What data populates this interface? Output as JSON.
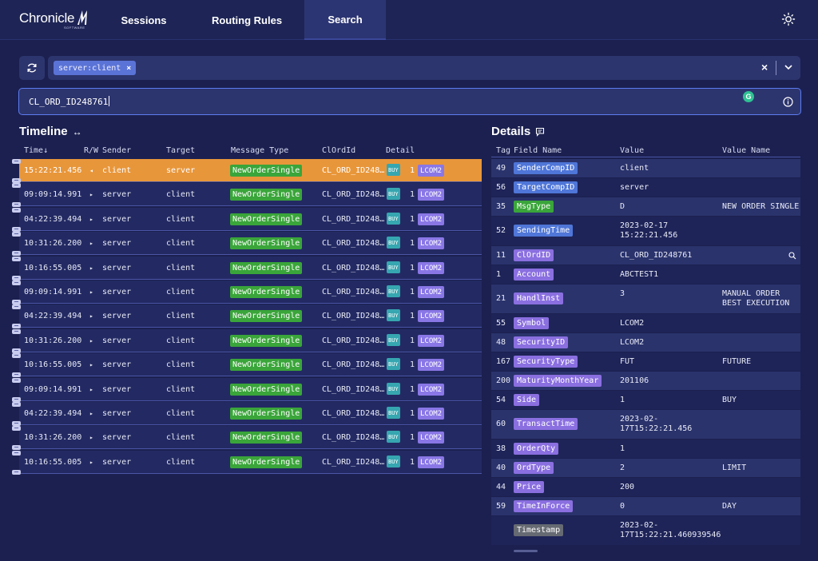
{
  "header": {
    "logo_text": "Chronicle",
    "logo_sub": "SOFTWARE",
    "tabs": [
      "Sessions",
      "Routing Rules",
      "Search"
    ],
    "active_tab": "Search",
    "theme_icon": "sun-icon"
  },
  "filter": {
    "chip": "server:client",
    "chip_remove": "×",
    "clear": "×"
  },
  "search": {
    "value": "CL_ORD_ID248761",
    "grammar_badge": "G"
  },
  "timeline": {
    "title": "Timeline",
    "expand": "↔",
    "columns": [
      "Time↓",
      "R/W",
      "Sender",
      "Target",
      "Message Type",
      "ClOrdId",
      "Detail"
    ],
    "rows": [
      {
        "time": "15:22:21.456",
        "rw": "◂",
        "sender": "client",
        "target": "server",
        "msg_type": "NewOrderSingle",
        "clordid": "CL_ORD_ID248…",
        "side": "BUY",
        "sup": "1",
        "symbol": "LCOM2",
        "selected": true
      },
      {
        "time": "09:09:14.991",
        "rw": "▸",
        "sender": "server",
        "target": "client",
        "msg_type": "NewOrderSingle",
        "clordid": "CL_ORD_ID248…",
        "side": "BUY",
        "sup": "1",
        "symbol": "LCOM2"
      },
      {
        "time": "04:22:39.494",
        "rw": "▸",
        "sender": "server",
        "target": "client",
        "msg_type": "NewOrderSingle",
        "clordid": "CL_ORD_ID248…",
        "side": "BUY",
        "sup": "1",
        "symbol": "LCOM2"
      },
      {
        "time": "10:31:26.200",
        "rw": "▸",
        "sender": "server",
        "target": "client",
        "msg_type": "NewOrderSingle",
        "clordid": "CL_ORD_ID248…",
        "side": "BUY",
        "sup": "1",
        "symbol": "LCOM2"
      },
      {
        "time": "10:16:55.005",
        "rw": "▸",
        "sender": "server",
        "target": "client",
        "msg_type": "NewOrderSingle",
        "clordid": "CL_ORD_ID248…",
        "side": "BUY",
        "sup": "1",
        "symbol": "LCOM2"
      },
      {
        "time": "09:09:14.991",
        "rw": "▸",
        "sender": "server",
        "target": "client",
        "msg_type": "NewOrderSingle",
        "clordid": "CL_ORD_ID248…",
        "side": "BUY",
        "sup": "1",
        "symbol": "LCOM2"
      },
      {
        "time": "04:22:39.494",
        "rw": "▸",
        "sender": "server",
        "target": "client",
        "msg_type": "NewOrderSingle",
        "clordid": "CL_ORD_ID248…",
        "side": "BUY",
        "sup": "1",
        "symbol": "LCOM2"
      },
      {
        "time": "10:31:26.200",
        "rw": "▸",
        "sender": "server",
        "target": "client",
        "msg_type": "NewOrderSingle",
        "clordid": "CL_ORD_ID248…",
        "side": "BUY",
        "sup": "1",
        "symbol": "LCOM2"
      },
      {
        "time": "10:16:55.005",
        "rw": "▸",
        "sender": "server",
        "target": "client",
        "msg_type": "NewOrderSingle",
        "clordid": "CL_ORD_ID248…",
        "side": "BUY",
        "sup": "1",
        "symbol": "LCOM2"
      },
      {
        "time": "09:09:14.991",
        "rw": "▸",
        "sender": "server",
        "target": "client",
        "msg_type": "NewOrderSingle",
        "clordid": "CL_ORD_ID248…",
        "side": "BUY",
        "sup": "1",
        "symbol": "LCOM2"
      },
      {
        "time": "04:22:39.494",
        "rw": "▸",
        "sender": "server",
        "target": "client",
        "msg_type": "NewOrderSingle",
        "clordid": "CL_ORD_ID248…",
        "side": "BUY",
        "sup": "1",
        "symbol": "LCOM2"
      },
      {
        "time": "10:31:26.200",
        "rw": "▸",
        "sender": "server",
        "target": "client",
        "msg_type": "NewOrderSingle",
        "clordid": "CL_ORD_ID248…",
        "side": "BUY",
        "sup": "1",
        "symbol": "LCOM2"
      },
      {
        "time": "10:16:55.005",
        "rw": "▸",
        "sender": "server",
        "target": "client",
        "msg_type": "NewOrderSingle",
        "clordid": "CL_ORD_ID248…",
        "side": "BUY",
        "sup": "1",
        "symbol": "LCOM2"
      }
    ]
  },
  "details": {
    "title": "Details",
    "columns": [
      "Tag",
      "Field Name",
      "Value",
      "Value Name"
    ],
    "rows": [
      {
        "tag": "49",
        "field": "SenderCompID",
        "color": "blue",
        "value": "client",
        "value_name": ""
      },
      {
        "tag": "56",
        "field": "TargetCompID",
        "color": "blue",
        "value": "server",
        "value_name": ""
      },
      {
        "tag": "35",
        "field": "MsgType",
        "color": "green",
        "value": "D",
        "value_name": "NEW ORDER SINGLE"
      },
      {
        "tag": "52",
        "field": "SendingTime",
        "color": "blue",
        "value": "2023-02-17\n15:22:21.456",
        "value_name": ""
      },
      {
        "tag": "11",
        "field": "ClOrdID",
        "color": "purple",
        "value": "CL_ORD_ID248761",
        "value_name": "",
        "search": true
      },
      {
        "tag": "1",
        "field": "Account",
        "color": "purple",
        "value": "ABCTEST1",
        "value_name": ""
      },
      {
        "tag": "21",
        "field": "HandlInst",
        "color": "purple",
        "value": "3",
        "value_name": "MANUAL ORDER\nBEST EXECUTION"
      },
      {
        "tag": "55",
        "field": "Symbol",
        "color": "purple",
        "value": "LCOM2",
        "value_name": ""
      },
      {
        "tag": "48",
        "field": "SecurityID",
        "color": "purple",
        "value": "LCOM2",
        "value_name": ""
      },
      {
        "tag": "167",
        "field": "SecurityType",
        "color": "purple",
        "value": "FUT",
        "value_name": "FUTURE"
      },
      {
        "tag": "200",
        "field": "MaturityMonthYear",
        "color": "purple",
        "value": "201106",
        "value_name": ""
      },
      {
        "tag": "54",
        "field": "Side",
        "color": "purple",
        "value": "1",
        "value_name": "BUY"
      },
      {
        "tag": "60",
        "field": "TransactTime",
        "color": "purple",
        "value": "2023-02-\n17T15:22:21.456",
        "value_name": ""
      },
      {
        "tag": "38",
        "field": "OrderQty",
        "color": "purple",
        "value": "1",
        "value_name": ""
      },
      {
        "tag": "40",
        "field": "OrdType",
        "color": "purple",
        "value": "2",
        "value_name": "LIMIT"
      },
      {
        "tag": "44",
        "field": "Price",
        "color": "purple",
        "value": "200",
        "value_name": ""
      },
      {
        "tag": "59",
        "field": "TimeInForce",
        "color": "purple",
        "value": "0",
        "value_name": "DAY"
      },
      {
        "tag": "",
        "field": "Timestamp",
        "color": "gray",
        "value": "2023-02-\n17T15:22:21.460939546",
        "value_name": ""
      }
    ]
  }
}
